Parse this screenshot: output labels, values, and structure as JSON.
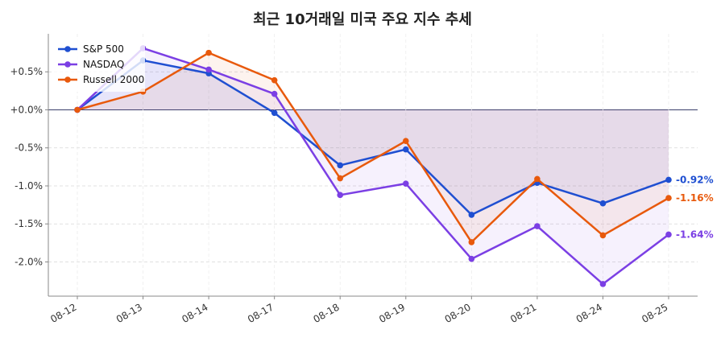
{
  "chart_data": {
    "type": "line",
    "title": "최근 10거래일 미국 주요 지수 추세",
    "categories": [
      "08-12",
      "08-13",
      "08-14",
      "08-17",
      "08-18",
      "08-19",
      "08-20",
      "08-21",
      "08-24",
      "08-25"
    ],
    "ylim": [
      -2.45,
      1.0
    ],
    "yticks": [
      0.5,
      0.0,
      -0.5,
      -1.0,
      -1.5,
      -2.0
    ],
    "ytick_labels": [
      "+0.5%",
      "+0.0%",
      "-0.5%",
      "-1.0%",
      "-1.5%",
      "-2.0%"
    ],
    "grid": true,
    "legend_position": "top-left",
    "series": [
      {
        "name": "S&P 500",
        "color": "#1f4fd1",
        "values": [
          0.0,
          0.65,
          0.48,
          -0.04,
          -0.73,
          -0.52,
          -1.38,
          -0.96,
          -1.23,
          -0.92
        ],
        "end_label": "-0.92%"
      },
      {
        "name": "NASDAQ",
        "color": "#7b3fe4",
        "values": [
          0.0,
          0.81,
          0.53,
          0.21,
          -1.12,
          -0.97,
          -1.96,
          -1.53,
          -2.29,
          -1.64
        ],
        "end_label": "-1.64%"
      },
      {
        "name": "Russell 2000",
        "color": "#e8590c",
        "values": [
          0.0,
          0.24,
          0.75,
          0.39,
          -0.9,
          -0.41,
          -1.74,
          -0.91,
          -1.65,
          -1.16
        ],
        "end_label": "-1.16%"
      }
    ]
  }
}
